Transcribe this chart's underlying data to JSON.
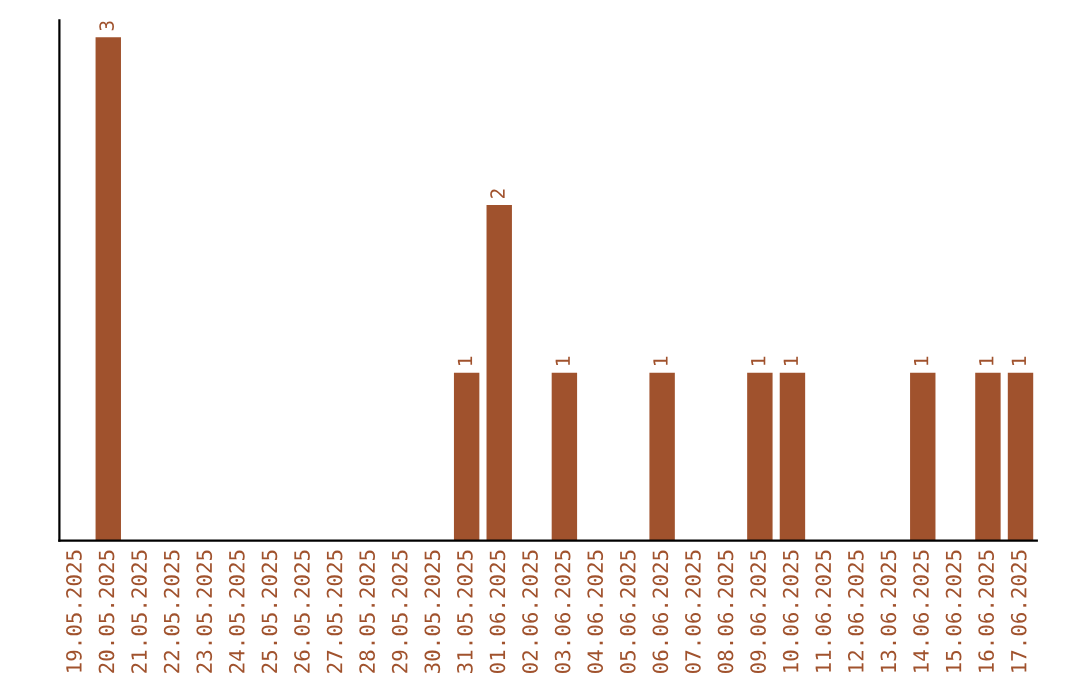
{
  "chart_data": {
    "type": "bar",
    "categories": [
      "19.05.2025",
      "20.05.2025",
      "21.05.2025",
      "22.05.2025",
      "23.05.2025",
      "24.05.2025",
      "25.05.2025",
      "26.05.2025",
      "27.05.2025",
      "28.05.2025",
      "29.05.2025",
      "30.05.2025",
      "31.05.2025",
      "01.06.2025",
      "02.06.2025",
      "03.06.2025",
      "04.06.2025",
      "05.06.2025",
      "06.06.2025",
      "07.06.2025",
      "08.06.2025",
      "09.06.2025",
      "10.06.2025",
      "11.06.2025",
      "12.06.2025",
      "13.06.2025",
      "14.06.2025",
      "15.06.2025",
      "16.06.2025",
      "17.06.2025"
    ],
    "values": [
      0,
      3,
      0,
      0,
      0,
      0,
      0,
      0,
      0,
      0,
      0,
      0,
      1,
      2,
      0,
      1,
      0,
      0,
      1,
      0,
      0,
      1,
      1,
      0,
      0,
      0,
      1,
      0,
      1,
      1
    ],
    "value_labels": [
      null,
      "3",
      null,
      null,
      null,
      null,
      null,
      null,
      null,
      null,
      null,
      null,
      "1",
      "2",
      null,
      "1",
      null,
      null,
      "1",
      null,
      null,
      "1",
      "1",
      null,
      null,
      null,
      "1",
      null,
      "1",
      "1"
    ],
    "color": "#a0522d",
    "ylim": [
      0,
      3.1
    ],
    "tick_labels": "x",
    "grid": false,
    "legend": false
  }
}
